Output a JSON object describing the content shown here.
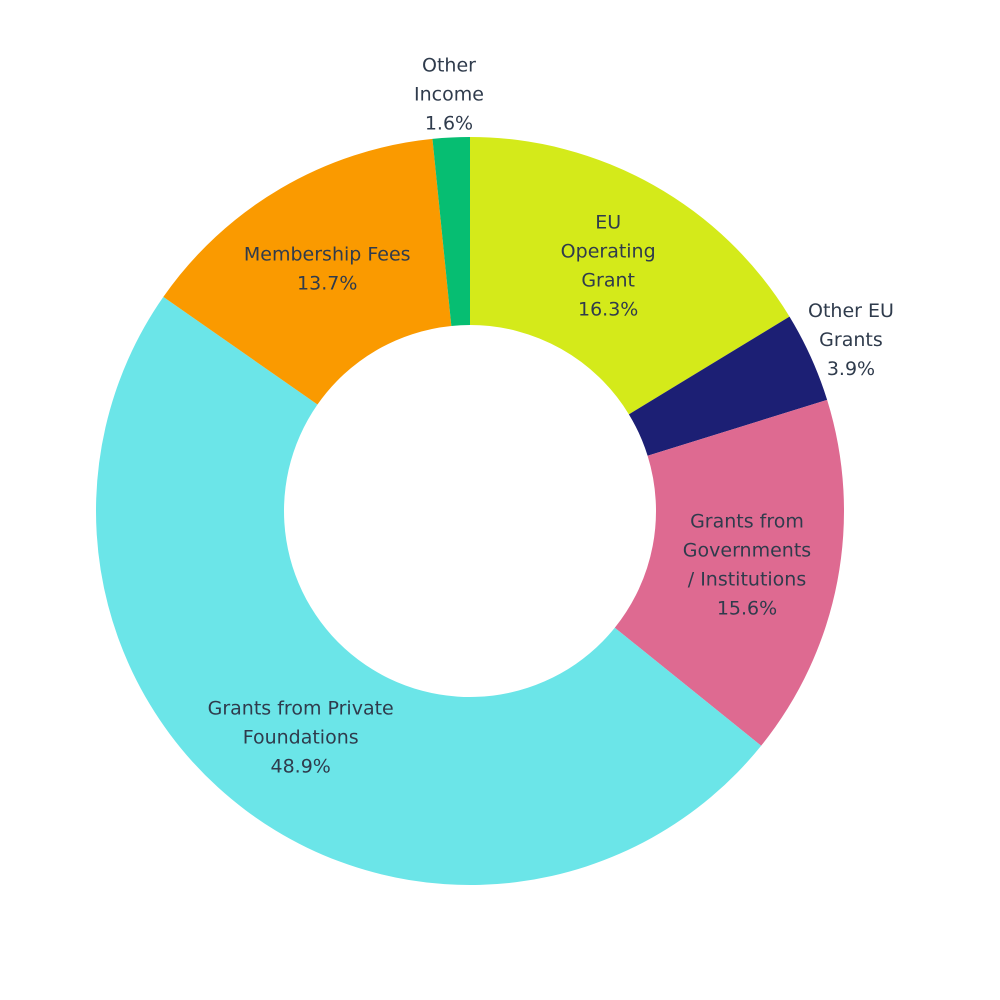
{
  "chart_data": {
    "type": "pie",
    "variant": "donut",
    "title": "",
    "legend": "none",
    "slices": [
      {
        "label_lines": [
          "EU",
          "Operating",
          "Grant"
        ],
        "value": 16.3,
        "value_label": "16.3%",
        "color": "#d4ea1a",
        "label_placement": "inside"
      },
      {
        "label_lines": [
          "Other EU",
          "Grants"
        ],
        "value": 3.9,
        "value_label": "3.9%",
        "color": "#1c1f74",
        "label_placement": "outside"
      },
      {
        "label_lines": [
          "Grants from",
          "Governments",
          "/ Institutions"
        ],
        "value": 15.6,
        "value_label": "15.6%",
        "color": "#de6a91",
        "label_placement": "inside"
      },
      {
        "label_lines": [
          "Grants from Private",
          "Foundations"
        ],
        "value": 48.9,
        "value_label": "48.9%",
        "color": "#6be5e8",
        "label_placement": "inside"
      },
      {
        "label_lines": [
          "Membership Fees"
        ],
        "value": 13.7,
        "value_label": "13.7%",
        "color": "#fa9a00",
        "label_placement": "inside"
      },
      {
        "label_lines": [
          "Other",
          "Income"
        ],
        "value": 1.6,
        "value_label": "1.6%",
        "color": "#06be72",
        "label_placement": "outside"
      }
    ]
  }
}
